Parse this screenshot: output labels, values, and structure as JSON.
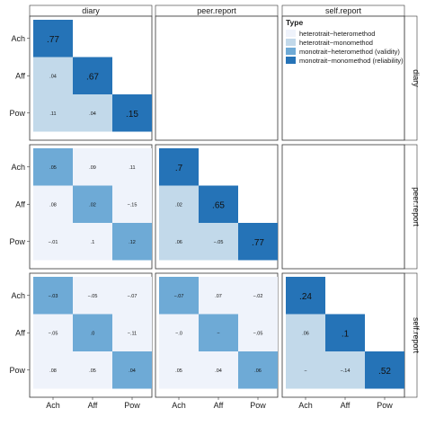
{
  "chart_data": {
    "type": "heatmap",
    "title": "",
    "xlabel": "",
    "ylabel": "",
    "facet_cols": [
      "diary",
      "peer.report",
      "self.report"
    ],
    "facet_rows": [
      "diary",
      "peer.report",
      "self.report"
    ],
    "traits": [
      "Ach",
      "Aff",
      "Pow"
    ],
    "legend": {
      "title": "Type",
      "placement": "top-right",
      "items": [
        {
          "key": "heterotrait_heteromethod",
          "label": "heterotrait−heteromethod",
          "color": "#eff3fb"
        },
        {
          "key": "heterotrait_monomethod",
          "label": "heterotrait−monomethod",
          "color": "#c2d9ea"
        },
        {
          "key": "monotrait_heteromethod",
          "label": "monotrait−heteromethod (validity)",
          "color": "#6eaad6"
        },
        {
          "key": "monotrait_monomethod",
          "label": "monotrait−monomethod (reliability)",
          "color": "#2573b7"
        }
      ]
    },
    "blocks": [
      {
        "col": 0,
        "row": 0,
        "cells": [
          {
            "r": 0,
            "c": 0,
            "label": ".77",
            "value": 0.77,
            "type": "monotrait_monomethod"
          },
          {
            "r": 1,
            "c": 0,
            "label": ".04",
            "value": 0.04,
            "type": "heterotrait_monomethod"
          },
          {
            "r": 1,
            "c": 1,
            "label": ".67",
            "value": 0.67,
            "type": "monotrait_monomethod"
          },
          {
            "r": 2,
            "c": 0,
            "label": ".11",
            "value": 0.11,
            "type": "heterotrait_monomethod"
          },
          {
            "r": 2,
            "c": 1,
            "label": ".04",
            "value": 0.04,
            "type": "heterotrait_monomethod"
          },
          {
            "r": 2,
            "c": 2,
            "label": ".15",
            "value": 0.15,
            "type": "monotrait_monomethod"
          }
        ]
      },
      {
        "col": 0,
        "row": 1,
        "cells": [
          {
            "r": 0,
            "c": 0,
            "label": ".05",
            "value": 0.05,
            "type": "monotrait_heteromethod"
          },
          {
            "r": 0,
            "c": 1,
            "label": ".09",
            "value": 0.09,
            "type": "heterotrait_heteromethod"
          },
          {
            "r": 0,
            "c": 2,
            "label": ".11",
            "value": 0.11,
            "type": "heterotrait_heteromethod"
          },
          {
            "r": 1,
            "c": 0,
            "label": ".08",
            "value": 0.08,
            "type": "heterotrait_heteromethod"
          },
          {
            "r": 1,
            "c": 1,
            "label": ".02",
            "value": 0.02,
            "type": "monotrait_heteromethod"
          },
          {
            "r": 1,
            "c": 2,
            "label": "−.15",
            "value": -0.15,
            "type": "heterotrait_heteromethod"
          },
          {
            "r": 2,
            "c": 0,
            "label": "−.01",
            "value": -0.01,
            "type": "heterotrait_heteromethod"
          },
          {
            "r": 2,
            "c": 1,
            "label": ".1",
            "value": 0.1,
            "type": "heterotrait_heteromethod"
          },
          {
            "r": 2,
            "c": 2,
            "label": ".12",
            "value": 0.12,
            "type": "monotrait_heteromethod"
          }
        ]
      },
      {
        "col": 1,
        "row": 1,
        "cells": [
          {
            "r": 0,
            "c": 0,
            "label": ".7",
            "value": 0.7,
            "type": "monotrait_monomethod"
          },
          {
            "r": 1,
            "c": 0,
            "label": ".02",
            "value": 0.02,
            "type": "heterotrait_monomethod"
          },
          {
            "r": 1,
            "c": 1,
            "label": ".65",
            "value": 0.65,
            "type": "monotrait_monomethod"
          },
          {
            "r": 2,
            "c": 0,
            "label": ".06",
            "value": 0.06,
            "type": "heterotrait_monomethod"
          },
          {
            "r": 2,
            "c": 1,
            "label": "−.05",
            "value": -0.05,
            "type": "heterotrait_monomethod"
          },
          {
            "r": 2,
            "c": 2,
            "label": ".77",
            "value": 0.77,
            "type": "monotrait_monomethod"
          }
        ]
      },
      {
        "col": 0,
        "row": 2,
        "cells": [
          {
            "r": 0,
            "c": 0,
            "label": "−.03",
            "value": -0.03,
            "type": "monotrait_heteromethod"
          },
          {
            "r": 0,
            "c": 1,
            "label": "−.05",
            "value": -0.05,
            "type": "heterotrait_heteromethod"
          },
          {
            "r": 0,
            "c": 2,
            "label": "−.07",
            "value": -0.07,
            "type": "heterotrait_heteromethod"
          },
          {
            "r": 1,
            "c": 0,
            "label": "−.05",
            "value": -0.05,
            "type": "heterotrait_heteromethod"
          },
          {
            "r": 1,
            "c": 1,
            "label": ".0",
            "value": 0.0,
            "type": "monotrait_heteromethod"
          },
          {
            "r": 1,
            "c": 2,
            "label": "−.11",
            "value": -0.11,
            "type": "heterotrait_heteromethod"
          },
          {
            "r": 2,
            "c": 0,
            "label": ".08",
            "value": 0.08,
            "type": "heterotrait_heteromethod"
          },
          {
            "r": 2,
            "c": 1,
            "label": ".05",
            "value": 0.05,
            "type": "heterotrait_heteromethod"
          },
          {
            "r": 2,
            "c": 2,
            "label": ".04",
            "value": 0.04,
            "type": "monotrait_heteromethod"
          }
        ]
      },
      {
        "col": 1,
        "row": 2,
        "cells": [
          {
            "r": 0,
            "c": 0,
            "label": "−.07",
            "value": -0.07,
            "type": "monotrait_heteromethod"
          },
          {
            "r": 0,
            "c": 1,
            "label": ".07",
            "value": 0.07,
            "type": "heterotrait_heteromethod"
          },
          {
            "r": 0,
            "c": 2,
            "label": "−.02",
            "value": -0.02,
            "type": "heterotrait_heteromethod"
          },
          {
            "r": 1,
            "c": 0,
            "label": "−.0",
            "value": -0.0,
            "type": "heterotrait_heteromethod"
          },
          {
            "r": 1,
            "c": 1,
            "label": "−",
            "value": -0.0,
            "type": "monotrait_heteromethod"
          },
          {
            "r": 1,
            "c": 2,
            "label": "−.05",
            "value": -0.05,
            "type": "heterotrait_heteromethod"
          },
          {
            "r": 2,
            "c": 0,
            "label": ".05",
            "value": 0.05,
            "type": "heterotrait_heteromethod"
          },
          {
            "r": 2,
            "c": 1,
            "label": ".04",
            "value": 0.04,
            "type": "heterotrait_heteromethod"
          },
          {
            "r": 2,
            "c": 2,
            "label": ".06",
            "value": 0.06,
            "type": "monotrait_heteromethod"
          }
        ]
      },
      {
        "col": 2,
        "row": 2,
        "cells": [
          {
            "r": 0,
            "c": 0,
            "label": ".24",
            "value": 0.24,
            "type": "monotrait_monomethod"
          },
          {
            "r": 1,
            "c": 0,
            "label": ".06",
            "value": 0.06,
            "type": "heterotrait_monomethod"
          },
          {
            "r": 1,
            "c": 1,
            "label": ".1",
            "value": 0.1,
            "type": "monotrait_monomethod"
          },
          {
            "r": 2,
            "c": 0,
            "label": "−",
            "value": -0.0,
            "type": "heterotrait_monomethod"
          },
          {
            "r": 2,
            "c": 1,
            "label": "−.14",
            "value": -0.14,
            "type": "heterotrait_monomethod"
          },
          {
            "r": 2,
            "c": 2,
            "label": ".52",
            "value": 0.52,
            "type": "monotrait_monomethod"
          }
        ]
      }
    ]
  }
}
